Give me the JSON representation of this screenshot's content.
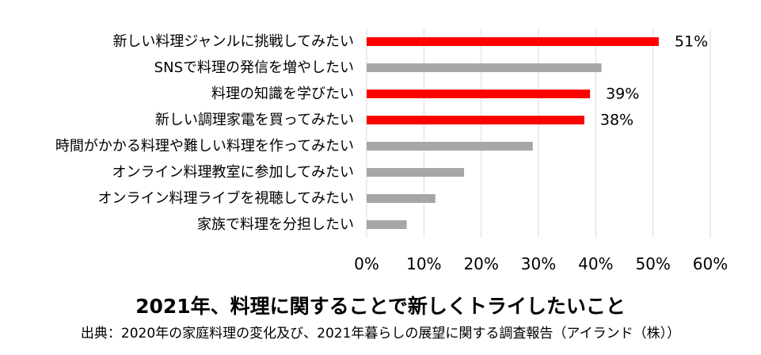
{
  "chart_data": {
    "type": "bar",
    "orientation": "horizontal",
    "categories": [
      "新しい料理ジャンルに挑戦してみたい",
      "SNSで料理の発信を増やしたい",
      "料理の知識を学びたい",
      "新しい調理家電を買ってみたい",
      "時間がかかる料理や難しい料理を作ってみたい",
      "オンライン料理教室に参加してみたい",
      "オンライン料理ライブを視聴してみたい",
      "家族で料理を分担したい"
    ],
    "values": [
      51,
      41,
      39,
      38,
      29,
      17,
      12,
      7
    ],
    "data_labels": [
      "51%",
      "",
      "39%",
      "38%",
      "",
      "",
      "",
      ""
    ],
    "highlighted": [
      true,
      false,
      true,
      true,
      false,
      false,
      false,
      false
    ],
    "xlim": [
      0,
      60
    ],
    "x_ticks": [
      0,
      10,
      20,
      30,
      40,
      50,
      60
    ],
    "x_tick_labels": [
      "0%",
      "10%",
      "20%",
      "30%",
      "40%",
      "50%",
      "60%"
    ],
    "grid": "vertical",
    "colors": {
      "highlight": "#ff0000",
      "normal": "#a6a6a6",
      "grid": "#d9d9d9"
    },
    "title": "2021年、料理に関することで新しくトライしたいこと",
    "source": "出典：2020年の家庭料理の変化及び、2021年暮らしの展望に関する調査報告（アイランド（株））"
  }
}
